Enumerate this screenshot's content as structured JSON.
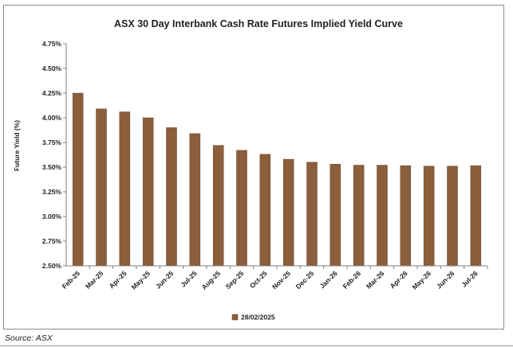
{
  "colors": {
    "bar": "#8B5E3C",
    "bar_edge": "#6b4529",
    "axis": "#7f7f7f",
    "grid": "#d9d9d9",
    "text": "#222222"
  },
  "chart_data": {
    "type": "bar",
    "title": "ASX 30 Day Interbank Cash Rate Futures Implied Yield Curve",
    "xlabel": "",
    "ylabel": "Future Yield (%)",
    "ylim": [
      2.5,
      4.75
    ],
    "yticks": [
      "2.50%",
      "2.75%",
      "3.00%",
      "3.25%",
      "3.50%",
      "3.75%",
      "4.00%",
      "4.25%",
      "4.50%",
      "4.75%"
    ],
    "grid": false,
    "legend_position": "bottom",
    "categories": [
      "Feb-25",
      "Mar-25",
      "Apr-25",
      "May-25",
      "Jun-25",
      "Jul-25",
      "Aug-25",
      "Sep-25",
      "Oct-25",
      "Nov-25",
      "Dec-25",
      "Jan-26",
      "Feb-26",
      "Mar-26",
      "Apr-26",
      "May-26",
      "Jun-26",
      "Jul-26"
    ],
    "series": [
      {
        "name": "28/02/2025",
        "values": [
          4.25,
          4.09,
          4.06,
          4.0,
          3.9,
          3.84,
          3.72,
          3.67,
          3.63,
          3.58,
          3.55,
          3.53,
          3.52,
          3.52,
          3.515,
          3.51,
          3.51,
          3.515
        ]
      }
    ]
  },
  "source": "Source: ASX"
}
